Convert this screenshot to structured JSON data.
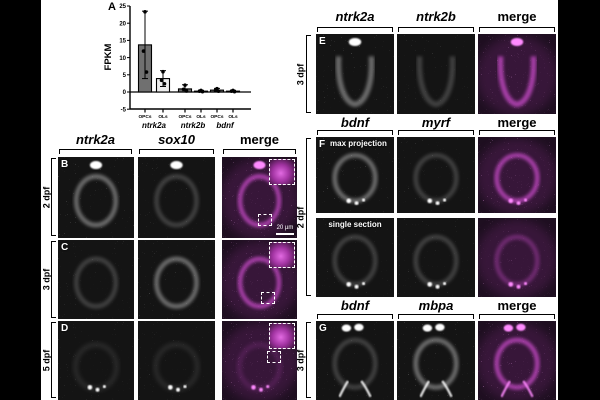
{
  "panel_letters": {
    "A": "A"
  },
  "chart_data": {
    "type": "bar",
    "title": "",
    "ylabel": "FPKM",
    "xlabel": "",
    "ylim": [
      -5,
      25
    ],
    "yticks": [
      25,
      20,
      15,
      10,
      5,
      0,
      -5
    ],
    "grid": false,
    "legend": null,
    "bar_fill_opcs": "#707070",
    "bar_fill_ols": "#ececec",
    "groups": [
      {
        "gene": "ntrk2a",
        "bars": [
          {
            "label": "OPCs",
            "mean": 13.7,
            "err_high": 23.5,
            "points": [
              23.3,
              11.9,
              5.8
            ]
          },
          {
            "label": "OLs",
            "mean": 3.9,
            "err_high": 6.2,
            "points": [
              5.9,
              3.4,
              2.4
            ]
          }
        ]
      },
      {
        "gene": "ntrk2b",
        "bars": [
          {
            "label": "OPCs",
            "mean": 0.9,
            "err_high": 2.1,
            "points": [
              2.0,
              0.8,
              0.3
            ]
          },
          {
            "label": "OLs",
            "mean": 0.25,
            "err_high": 0.5,
            "points": [
              0.45,
              0.25,
              0.1
            ]
          }
        ]
      },
      {
        "gene": "bdnf",
        "bars": [
          {
            "label": "OPCs",
            "mean": 0.55,
            "err_high": 1.05,
            "points": [
              0.95,
              0.5,
              0.25
            ]
          },
          {
            "label": "OLs",
            "mean": 0.25,
            "err_high": 0.5,
            "points": [
              0.45,
              0.25,
              0.1
            ]
          }
        ]
      }
    ]
  },
  "left_block": {
    "headers": [
      "ntrk2a",
      "sox10",
      "merge"
    ],
    "rows": [
      {
        "letter": "B",
        "age": "2 dpf"
      },
      {
        "letter": "C",
        "age": "3 dpf"
      },
      {
        "letter": "D",
        "age": "5 dpf"
      }
    ],
    "scale_bar": "20 µm"
  },
  "right_top": {
    "headers": [
      "ntrk2a",
      "ntrk2b",
      "merge"
    ],
    "letter": "E",
    "age": "3 dpf"
  },
  "right_mid": {
    "headers": [
      "bdnf",
      "myrf",
      "merge"
    ],
    "letter": "F",
    "age": "2 dpf",
    "sub_labels": [
      "max projection",
      "single section"
    ]
  },
  "right_bottom": {
    "headers": [
      "bdnf",
      "mbpa",
      "merge"
    ],
    "letter": "G",
    "age": "3 dpf"
  },
  "colors": {
    "merge_magenta": "#d44fd4",
    "micro_gray_bg": "#141414",
    "micro_merge_bg": "#1e0f20"
  }
}
